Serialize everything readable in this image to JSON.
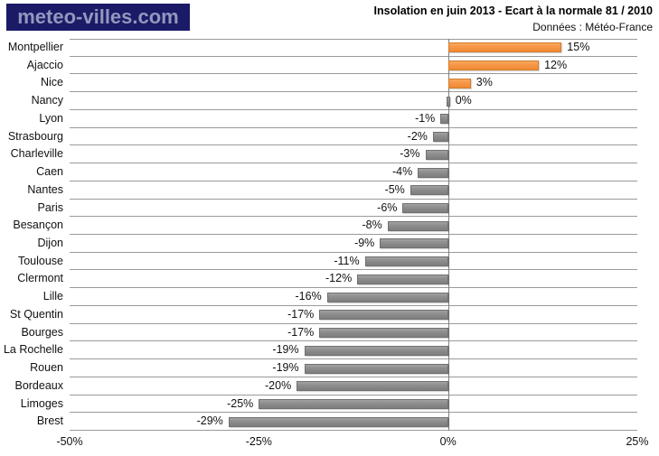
{
  "header": {
    "logo_text": "meteo-villes.com",
    "title": "Insolation en juin 2013 - Ecart à la normale 81 / 2010",
    "subtitle": "Données : Météo-France"
  },
  "colors": {
    "positive_bar": "#F79646",
    "negative_bar": "#8C8C8C",
    "logo_background": "#1A1A66",
    "logo_text": "#9496BE",
    "row_separator": "#9A9A9A",
    "zero_axis": "#808080"
  },
  "chart_data": {
    "type": "bar",
    "orientation": "horizontal",
    "title": "Insolation en juin 2013 - Ecart à la normale 81 / 2010",
    "source": "Données : Météo-France",
    "categories": [
      "Montpellier",
      "Ajaccio",
      "Nice",
      "Nancy",
      "Lyon",
      "Strasbourg",
      "Charleville",
      "Caen",
      "Nantes",
      "Paris",
      "Besançon",
      "Dijon",
      "Toulouse",
      "Clermont",
      "Lille",
      "St Quentin",
      "Bourges",
      "La Rochelle",
      "Rouen",
      "Bordeaux",
      "Limoges",
      "Brest"
    ],
    "values": [
      15,
      12,
      3,
      0,
      -1,
      -2,
      -3,
      -4,
      -5,
      -6,
      -8,
      -9,
      -11,
      -12,
      -16,
      -17,
      -17,
      -19,
      -19,
      -20,
      -25,
      -29
    ],
    "value_labels": [
      "15%",
      "12%",
      "3%",
      "0%",
      "-1%",
      "-2%",
      "-3%",
      "-4%",
      "-5%",
      "-6%",
      "-8%",
      "-9%",
      "-11%",
      "-12%",
      "-16%",
      "-17%",
      "-17%",
      "-19%",
      "-19%",
      "-20%",
      "-25%",
      "-29%"
    ],
    "xlabel": "",
    "ylabel": "",
    "xlim": [
      -50,
      25
    ],
    "x_ticks": [
      {
        "value": -50,
        "label": "-50%"
      },
      {
        "value": -25,
        "label": "-25%"
      },
      {
        "value": 0,
        "label": "0%"
      },
      {
        "value": 25,
        "label": "25%"
      }
    ],
    "grid": "horizontal row separators only, solid gray",
    "legend": "none",
    "bar_colors": {
      "positive": "#F79646",
      "negative": "#8C8C8C"
    }
  }
}
